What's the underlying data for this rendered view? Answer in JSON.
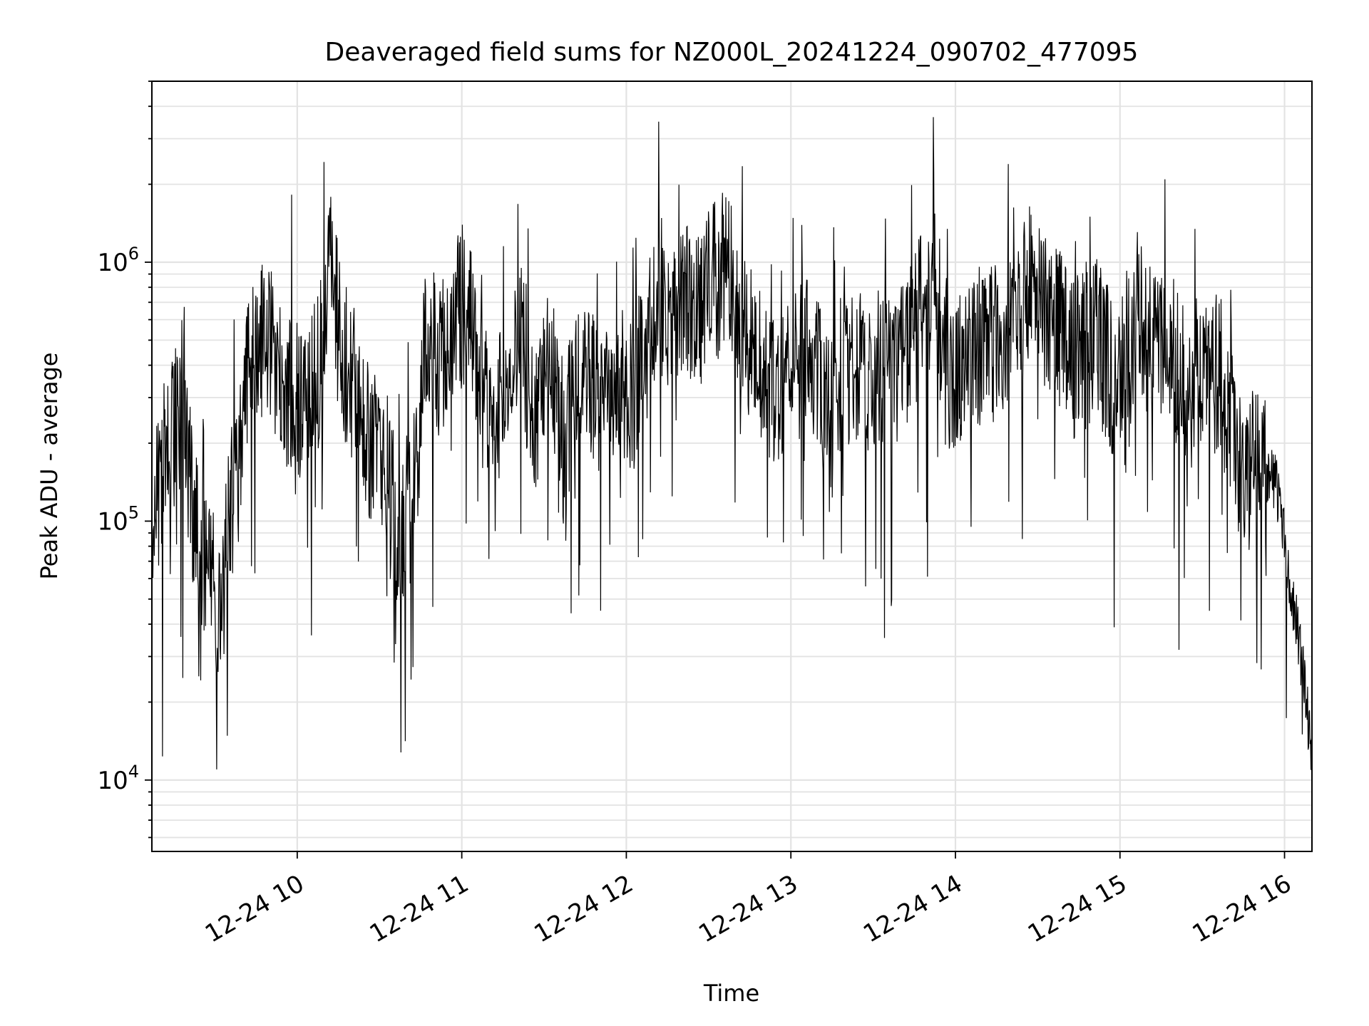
{
  "chart_data": {
    "type": "line",
    "title": "Deaveraged field sums for NZ000L_20241224_090702_477095",
    "xlabel": "Time",
    "ylabel": "Peak ADU - average",
    "x_tick_labels": [
      "12-24 10",
      "12-24 11",
      "12-24 12",
      "12-24 13",
      "12-24 14",
      "12-24 15",
      "12-24 16"
    ],
    "y_tick_labels": [
      {
        "base": "10",
        "exp": "4"
      },
      {
        "base": "10",
        "exp": "5"
      },
      {
        "base": "10",
        "exp": "6"
      }
    ],
    "y_scale": "log",
    "ylim": [
      5300,
      5000000
    ],
    "xlim": [
      "2024-12-24 09:07",
      "2024-12-24 16:10"
    ],
    "grid": true,
    "line_color": "#000000",
    "series": [
      {
        "x": [
          "2024-12-24 09:07",
          "2024-12-24 09:12",
          "2024-12-24 09:17",
          "2024-12-24 09:22",
          "2024-12-24 09:27",
          "2024-12-24 09:32",
          "2024-12-24 09:37",
          "2024-12-24 09:42",
          "2024-12-24 09:47",
          "2024-12-24 09:52",
          "2024-12-24 09:57",
          "2024-12-24 10:02",
          "2024-12-24 10:07",
          "2024-12-24 10:12",
          "2024-12-24 10:17",
          "2024-12-24 10:22",
          "2024-12-24 10:27",
          "2024-12-24 10:32",
          "2024-12-24 10:37",
          "2024-12-24 10:42",
          "2024-12-24 10:47",
          "2024-12-24 10:52",
          "2024-12-24 10:57",
          "2024-12-24 11:02",
          "2024-12-24 11:07",
          "2024-12-24 11:12",
          "2024-12-24 11:17",
          "2024-12-24 11:22",
          "2024-12-24 11:27",
          "2024-12-24 11:32",
          "2024-12-24 11:37",
          "2024-12-24 11:42",
          "2024-12-24 11:47",
          "2024-12-24 11:52",
          "2024-12-24 11:57",
          "2024-12-24 12:02",
          "2024-12-24 12:07",
          "2024-12-24 12:12",
          "2024-12-24 12:17",
          "2024-12-24 12:22",
          "2024-12-24 12:27",
          "2024-12-24 12:32",
          "2024-12-24 12:37",
          "2024-12-24 12:42",
          "2024-12-24 12:47",
          "2024-12-24 12:52",
          "2024-12-24 12:57",
          "2024-12-24 13:02",
          "2024-12-24 13:07",
          "2024-12-24 13:12",
          "2024-12-24 13:17",
          "2024-12-24 13:22",
          "2024-12-24 13:27",
          "2024-12-24 13:32",
          "2024-12-24 13:37",
          "2024-12-24 13:42",
          "2024-12-24 13:47",
          "2024-12-24 13:52",
          "2024-12-24 13:57",
          "2024-12-24 14:02",
          "2024-12-24 14:07",
          "2024-12-24 14:12",
          "2024-12-24 14:17",
          "2024-12-24 14:22",
          "2024-12-24 14:27",
          "2024-12-24 14:32",
          "2024-12-24 14:37",
          "2024-12-24 14:42",
          "2024-12-24 14:47",
          "2024-12-24 14:52",
          "2024-12-24 14:57",
          "2024-12-24 15:02",
          "2024-12-24 15:07",
          "2024-12-24 15:12",
          "2024-12-24 15:17",
          "2024-12-24 15:22",
          "2024-12-24 15:27",
          "2024-12-24 15:32",
          "2024-12-24 15:37",
          "2024-12-24 15:42",
          "2024-12-24 15:47",
          "2024-12-24 15:52",
          "2024-12-24 15:57",
          "2024-12-24 16:02",
          "2024-12-24 16:07",
          "2024-12-24 16:10"
        ],
        "y": [
          90000,
          180000,
          250000,
          120000,
          60000,
          45000,
          150000,
          380000,
          500000,
          420000,
          300000,
          280000,
          350000,
          900000,
          400000,
          320000,
          200000,
          150000,
          90000,
          120000,
          500000,
          400000,
          600000,
          700000,
          350000,
          250000,
          300000,
          500000,
          250000,
          400000,
          200000,
          300000,
          350000,
          250000,
          400000,
          300000,
          450000,
          800000,
          600000,
          700000,
          650000,
          900000,
          900000,
          550000,
          450000,
          300000,
          350000,
          500000,
          450000,
          300000,
          350000,
          400000,
          380000,
          400000,
          350000,
          450000,
          600000,
          900000,
          350000,
          400000,
          500000,
          450000,
          500000,
          550000,
          800000,
          700000,
          600000,
          400000,
          450000,
          500000,
          350000,
          300000,
          700000,
          450000,
          500000,
          350000,
          400000,
          450000,
          350000,
          200000,
          150000,
          160000,
          140000,
          60000,
          25000,
          12000
        ]
      }
    ],
    "series_style": "dense noisy line with many sharp spikes between ~2e4 and ~4e6"
  }
}
